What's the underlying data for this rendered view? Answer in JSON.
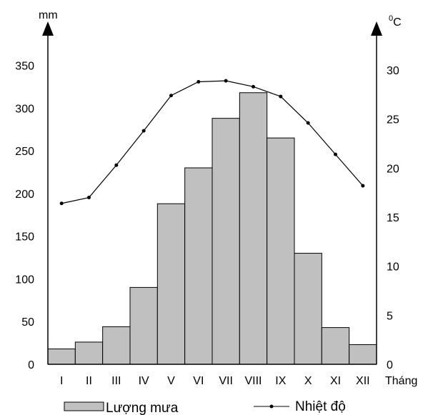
{
  "chart_data": {
    "type": "bar-line-climate",
    "categories": [
      "I",
      "II",
      "III",
      "IV",
      "V",
      "VI",
      "VII",
      "VIII",
      "IX",
      "X",
      "XI",
      "XII"
    ],
    "x_unit_label": "Tháng",
    "series": [
      {
        "name": "Lượng mưa",
        "kind": "bar",
        "axis": "left",
        "values": [
          18,
          26,
          44,
          90,
          188,
          230,
          288,
          318,
          265,
          130,
          43,
          23
        ]
      },
      {
        "name": "Nhiệt độ",
        "kind": "line",
        "axis": "right",
        "values": [
          16.4,
          17.0,
          20.3,
          23.8,
          27.4,
          28.8,
          28.9,
          28.3,
          27.3,
          24.6,
          21.4,
          18.2
        ]
      }
    ],
    "left_axis": {
      "unit_label": "mm",
      "ylim": [
        0,
        350
      ],
      "ticks": [
        0,
        50,
        100,
        150,
        200,
        250,
        300,
        350
      ]
    },
    "right_axis": {
      "unit_label_sup": "0",
      "unit_label": "C",
      "ylim": [
        0,
        30
      ],
      "ticks": [
        0,
        5,
        10,
        15,
        20,
        25,
        30
      ]
    },
    "grid": false,
    "legend_position": "bottom",
    "colors": {
      "bar_fill": "#c0c0c0",
      "bar_stroke": "#000000",
      "line": "#000000"
    }
  }
}
